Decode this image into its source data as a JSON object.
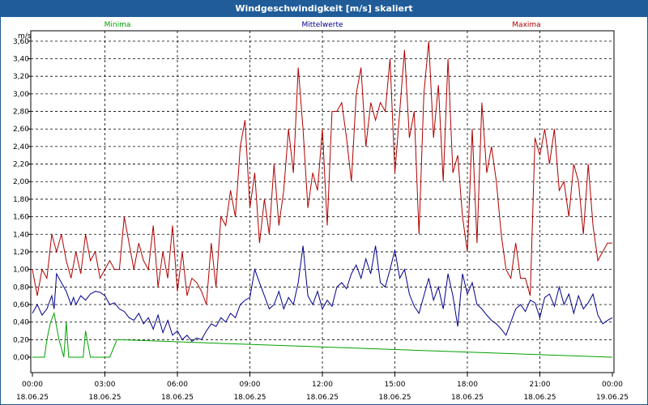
{
  "window": {
    "title": "Windgeschwindigkeit [m/s] skaliert"
  },
  "chart_data": {
    "type": "line",
    "unit_label": "m/s",
    "ylim": [
      0,
      3.7
    ],
    "yticks": [
      "0,00",
      "0,20",
      "0,40",
      "0,60",
      "0,80",
      "1,00",
      "1,20",
      "1,40",
      "1,60",
      "1,80",
      "2,00",
      "2,20",
      "2,40",
      "2,60",
      "2,80",
      "3,00",
      "3,20",
      "3,40",
      "3,60"
    ],
    "xlim": [
      0,
      24
    ],
    "xticks": [
      {
        "time": "00:00",
        "date": "18.06.25"
      },
      {
        "time": "03:00",
        "date": "18.06.25"
      },
      {
        "time": "06:00",
        "date": "18.06.25"
      },
      {
        "time": "09:00",
        "date": "18.06.25"
      },
      {
        "time": "12:00",
        "date": "18.06.25"
      },
      {
        "time": "15:00",
        "date": "18.06.25"
      },
      {
        "time": "18:00",
        "date": "18.06.25"
      },
      {
        "time": "21:00",
        "date": "18.06.25"
      },
      {
        "time": "00:00",
        "date": "19.06.25"
      }
    ],
    "grid": true,
    "series": [
      {
        "name": "Minima",
        "color": "#00a000",
        "x": [
          0,
          0.5,
          0.6,
          0.75,
          0.9,
          1.1,
          1.3,
          1.4,
          1.5,
          1.6,
          2.0,
          2.1,
          2.2,
          2.4,
          3.0,
          3.2,
          3.5,
          24
        ],
        "y": [
          0,
          0,
          0.2,
          0.4,
          0.5,
          0.2,
          0,
          0.4,
          0,
          0,
          0,
          0,
          0.3,
          0,
          0,
          0,
          0.2,
          0
        ]
      },
      {
        "name": "Mittelwerte",
        "color": "#00008b",
        "x": [
          0,
          0.2,
          0.4,
          0.6,
          0.8,
          0.9,
          1.0,
          1.2,
          1.4,
          1.6,
          1.7,
          1.8,
          2.0,
          2.2,
          2.4,
          2.6,
          2.8,
          3.0,
          3.2,
          3.4,
          3.6,
          3.8,
          4.0,
          4.2,
          4.4,
          4.6,
          4.8,
          5.0,
          5.2,
          5.4,
          5.6,
          5.8,
          6.0,
          6.2,
          6.4,
          6.6,
          6.8,
          7.0,
          7.2,
          7.4,
          7.6,
          7.8,
          8.0,
          8.2,
          8.4,
          8.6,
          8.8,
          9.0,
          9.2,
          9.4,
          9.6,
          9.8,
          10.0,
          10.2,
          10.4,
          10.6,
          10.8,
          11.0,
          11.2,
          11.4,
          11.6,
          11.8,
          12.0,
          12.2,
          12.4,
          12.6,
          12.8,
          13.0,
          13.2,
          13.4,
          13.6,
          13.8,
          14.0,
          14.2,
          14.4,
          14.6,
          14.8,
          15.0,
          15.2,
          15.4,
          15.6,
          15.8,
          16.0,
          16.2,
          16.4,
          16.6,
          16.8,
          17.0,
          17.2,
          17.4,
          17.6,
          17.8,
          18.0,
          18.2,
          18.4,
          18.6,
          18.8,
          19.0,
          19.2,
          19.4,
          19.6,
          19.8,
          20.0,
          20.2,
          20.4,
          20.6,
          20.8,
          21.0,
          21.2,
          21.4,
          21.6,
          21.8,
          22.0,
          22.2,
          22.4,
          22.6,
          22.8,
          23.0,
          23.2,
          23.4,
          23.6,
          23.8,
          24.0
        ],
        "y": [
          0.5,
          0.6,
          0.48,
          0.55,
          0.7,
          0.55,
          0.95,
          0.85,
          0.75,
          0.6,
          0.68,
          0.6,
          0.7,
          0.65,
          0.72,
          0.75,
          0.74,
          0.7,
          0.6,
          0.62,
          0.55,
          0.52,
          0.45,
          0.42,
          0.5,
          0.38,
          0.45,
          0.32,
          0.48,
          0.28,
          0.42,
          0.25,
          0.3,
          0.2,
          0.25,
          0.18,
          0.22,
          0.2,
          0.3,
          0.38,
          0.35,
          0.45,
          0.4,
          0.5,
          0.45,
          0.6,
          0.65,
          0.68,
          1.0,
          0.85,
          0.7,
          0.55,
          0.6,
          0.75,
          0.55,
          0.68,
          0.6,
          0.85,
          1.27,
          0.7,
          0.6,
          0.75,
          0.55,
          0.65,
          0.58,
          0.8,
          0.85,
          0.78,
          0.95,
          1.05,
          0.9,
          1.12,
          0.95,
          1.27,
          0.85,
          0.8,
          1.0,
          1.22,
          0.9,
          1.0,
          0.72,
          0.58,
          0.5,
          0.7,
          0.9,
          0.65,
          0.8,
          0.55,
          0.95,
          0.7,
          0.35,
          0.95,
          0.72,
          0.85,
          0.6,
          0.55,
          0.48,
          0.42,
          0.38,
          0.32,
          0.25,
          0.4,
          0.55,
          0.6,
          0.52,
          0.65,
          0.62,
          0.45,
          0.68,
          0.72,
          0.58,
          0.8,
          0.6,
          0.72,
          0.5,
          0.7,
          0.55,
          0.62,
          0.72,
          0.48,
          0.38,
          0.42,
          0.45
        ]
      },
      {
        "name": "Maxima",
        "color": "#b00000",
        "x": [
          0,
          0.2,
          0.4,
          0.6,
          0.8,
          1.0,
          1.2,
          1.4,
          1.6,
          1.8,
          2.0,
          2.2,
          2.4,
          2.6,
          2.8,
          3.0,
          3.2,
          3.4,
          3.6,
          3.8,
          4.0,
          4.2,
          4.4,
          4.6,
          4.8,
          5.0,
          5.2,
          5.4,
          5.6,
          5.8,
          6.0,
          6.2,
          6.4,
          6.6,
          6.8,
          7.0,
          7.2,
          7.4,
          7.6,
          7.8,
          8.0,
          8.2,
          8.4,
          8.6,
          8.8,
          9.0,
          9.2,
          9.4,
          9.6,
          9.8,
          10.0,
          10.2,
          10.4,
          10.6,
          10.8,
          11.0,
          11.2,
          11.4,
          11.6,
          11.8,
          12.0,
          12.2,
          12.4,
          12.6,
          12.8,
          13.0,
          13.2,
          13.4,
          13.6,
          13.8,
          14.0,
          14.2,
          14.4,
          14.6,
          14.8,
          15.0,
          15.2,
          15.4,
          15.6,
          15.8,
          16.0,
          16.2,
          16.4,
          16.6,
          16.8,
          17.0,
          17.2,
          17.4,
          17.6,
          17.8,
          18.0,
          18.2,
          18.4,
          18.6,
          18.8,
          19.0,
          19.2,
          19.4,
          19.6,
          19.8,
          20.0,
          20.2,
          20.4,
          20.6,
          20.8,
          21.0,
          21.2,
          21.4,
          21.6,
          21.8,
          22.0,
          22.2,
          22.4,
          22.6,
          22.8,
          23.0,
          23.2,
          23.4,
          23.6,
          23.8,
          24.0
        ],
        "y": [
          1.0,
          0.7,
          1.0,
          0.9,
          1.4,
          1.2,
          1.4,
          1.1,
          0.9,
          1.2,
          0.95,
          1.4,
          1.1,
          1.2,
          0.9,
          1.0,
          1.1,
          1.0,
          1.0,
          1.6,
          1.3,
          1.0,
          1.3,
          1.1,
          1.0,
          1.5,
          0.8,
          1.2,
          0.9,
          1.5,
          0.75,
          1.2,
          0.7,
          0.9,
          0.85,
          0.75,
          0.6,
          1.3,
          0.8,
          1.6,
          1.5,
          1.9,
          1.6,
          2.4,
          2.7,
          1.7,
          2.1,
          1.3,
          1.8,
          1.4,
          2.2,
          1.5,
          1.9,
          2.6,
          2.1,
          3.3,
          2.6,
          1.7,
          2.1,
          1.9,
          2.6,
          1.5,
          2.8,
          2.8,
          2.9,
          2.5,
          2.0,
          3.0,
          3.3,
          2.4,
          2.9,
          2.7,
          2.9,
          2.8,
          3.4,
          2.1,
          2.8,
          3.5,
          2.5,
          2.8,
          1.4,
          3.0,
          3.6,
          2.5,
          3.1,
          2.0,
          3.4,
          2.1,
          2.3,
          1.6,
          1.2,
          2.6,
          1.3,
          2.9,
          2.1,
          2.4,
          2.0,
          1.4,
          1.0,
          0.9,
          1.3,
          0.9,
          0.9,
          0.7,
          2.5,
          2.3,
          2.6,
          2.2,
          2.6,
          1.9,
          2.0,
          1.6,
          2.2,
          2.0,
          1.4,
          2.2,
          1.5,
          1.1,
          1.2,
          1.3,
          1.3
        ]
      }
    ]
  }
}
